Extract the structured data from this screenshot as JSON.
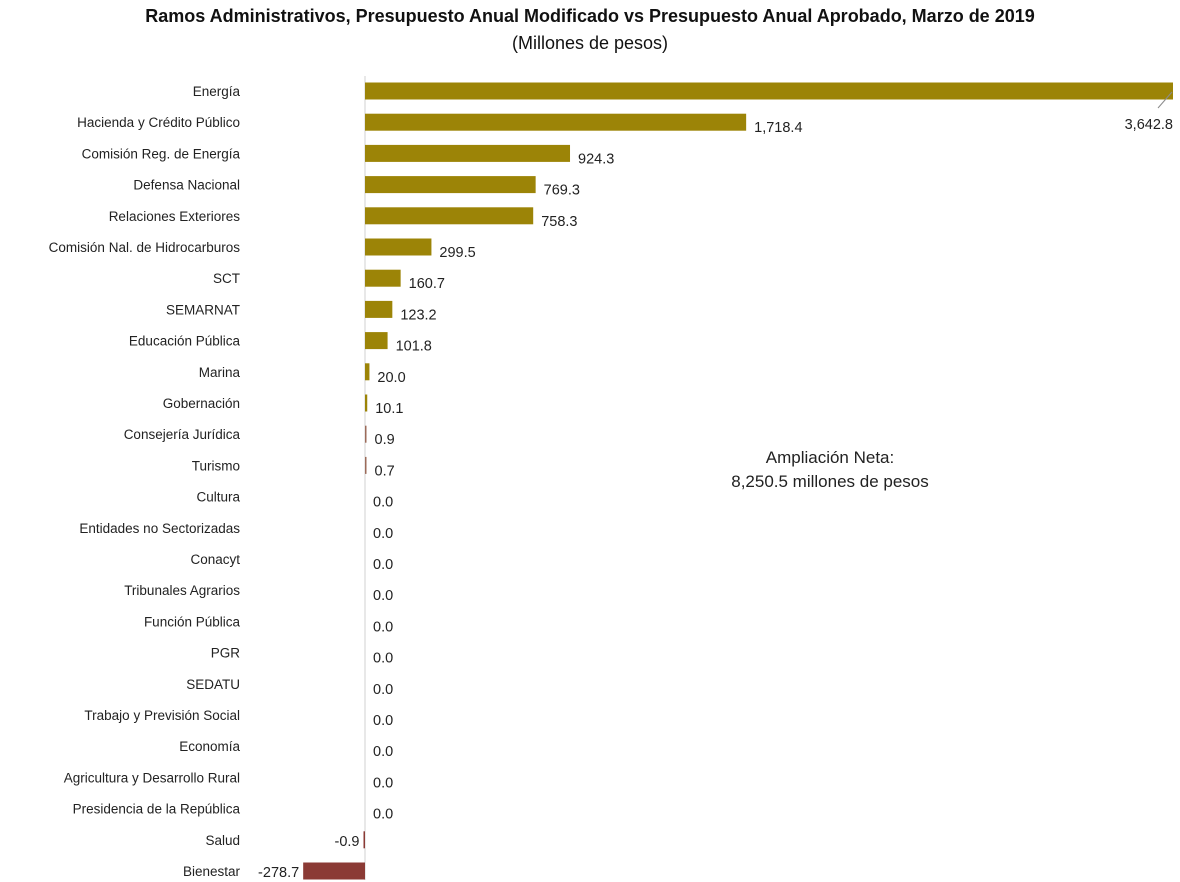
{
  "chart_data": {
    "type": "bar",
    "orientation": "horizontal",
    "title": "Ramos Administrativos, Presupuesto Anual Modificado vs Presupuesto Anual Aprobado, Marzo de 2019",
    "subtitle": "(Millones de pesos)",
    "categories": [
      "Energía",
      "Hacienda y Crédito Público",
      "Comisión Reg. de Energía",
      "Defensa Nacional",
      "Relaciones Exteriores",
      "Comisión Nal. de Hidrocarburos",
      "SCT",
      "SEMARNAT",
      "Educación Pública",
      "Marina",
      "Gobernación",
      "Consejería Jurídica",
      "Turismo",
      "Cultura",
      "Entidades no Sectorizadas",
      "Conacyt",
      "Tribunales Agrarios",
      "Función Pública",
      "PGR",
      "SEDATU",
      "Trabajo y Previsión Social",
      "Economía",
      "Agricultura y Desarrollo Rural",
      "Presidencia de la República",
      "Salud",
      "Bienestar"
    ],
    "values": [
      3642.8,
      1718.4,
      924.3,
      769.3,
      758.3,
      299.5,
      160.7,
      123.2,
      101.8,
      20.0,
      10.1,
      0.9,
      0.7,
      0.0,
      0.0,
      0.0,
      0.0,
      0.0,
      0.0,
      0.0,
      0.0,
      0.0,
      0.0,
      0.0,
      -0.9,
      -278.7
    ],
    "value_labels": [
      "3,642.8",
      "1,718.4",
      "924.3",
      "769.3",
      "758.3",
      "299.5",
      "160.7",
      "123.2",
      "101.8",
      "20.0",
      "10.1",
      "0.9",
      "0.7",
      "0.0",
      "0.0",
      "0.0",
      "0.0",
      "0.0",
      "0.0",
      "0.0",
      "0.0",
      "0.0",
      "0.0",
      "0.0",
      "-0.9",
      "-278.7"
    ],
    "colors": {
      "positive": "#9c8407",
      "negative": "#8b3a35",
      "small_positive": "#9c6b5a"
    },
    "grid": false,
    "annotation": {
      "line1": "Ampliación Neta:",
      "line2": "8,250.5 millones de pesos"
    }
  }
}
